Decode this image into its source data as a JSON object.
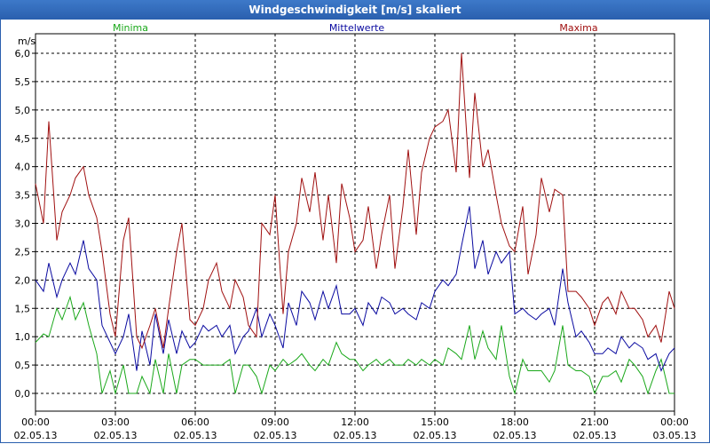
{
  "window": {
    "title": "Windgeschwindigkeit [m/s] skaliert"
  },
  "colors": {
    "minima": "#1aa81a",
    "mittel": "#0a0aa0",
    "maxima": "#a01010",
    "grid": "#000000"
  },
  "chart_data": {
    "type": "line",
    "title": "Windgeschwindigkeit [m/s] skaliert",
    "ylabel": "m/s",
    "ylim": [
      0,
      6.0
    ],
    "yticks": [
      "0,0",
      "0,5",
      "1,0",
      "1,5",
      "2,0",
      "2,5",
      "3,0",
      "3,5",
      "4,0",
      "4,5",
      "5,0",
      "5,5",
      "6,0"
    ],
    "xticks": [
      {
        "time": "00:00",
        "date": "02.05.13"
      },
      {
        "time": "03:00",
        "date": "02.05.13"
      },
      {
        "time": "06:00",
        "date": "02.05.13"
      },
      {
        "time": "09:00",
        "date": "02.05.13"
      },
      {
        "time": "12:00",
        "date": "02.05.13"
      },
      {
        "time": "15:00",
        "date": "02.05.13"
      },
      {
        "time": "18:00",
        "date": "02.05.13"
      },
      {
        "time": "21:00",
        "date": "02.05.13"
      },
      {
        "time": "00:00",
        "date": "03.05.13"
      }
    ],
    "x_hours": [
      0,
      0.3,
      0.5,
      0.8,
      1.0,
      1.3,
      1.5,
      1.8,
      2.0,
      2.3,
      2.5,
      2.8,
      3.0,
      3.3,
      3.5,
      3.8,
      4.0,
      4.3,
      4.5,
      4.8,
      5.0,
      5.3,
      5.5,
      5.8,
      6.0,
      6.3,
      6.5,
      6.8,
      7.0,
      7.3,
      7.5,
      7.8,
      8.0,
      8.3,
      8.5,
      8.8,
      9.0,
      9.3,
      9.5,
      9.8,
      10.0,
      10.3,
      10.5,
      10.8,
      11.0,
      11.3,
      11.5,
      11.8,
      12.0,
      12.3,
      12.5,
      12.8,
      13.0,
      13.3,
      13.5,
      13.8,
      14.0,
      14.3,
      14.5,
      14.8,
      15.0,
      15.3,
      15.5,
      15.8,
      16.0,
      16.3,
      16.5,
      16.8,
      17.0,
      17.3,
      17.5,
      17.8,
      18.0,
      18.3,
      18.5,
      18.8,
      19.0,
      19.3,
      19.5,
      19.8,
      20.0,
      20.3,
      20.5,
      20.8,
      21.0,
      21.3,
      21.5,
      21.8,
      22.0,
      22.3,
      22.5,
      22.8,
      23.0,
      23.3,
      23.5,
      23.8,
      24.0
    ],
    "series": [
      {
        "name": "Minima",
        "color": "#1aa81a",
        "values": [
          0.9,
          1.05,
          1.0,
          1.5,
          1.3,
          1.7,
          1.3,
          1.6,
          1.2,
          0.7,
          0.0,
          0.4,
          0.0,
          0.5,
          0.0,
          0.0,
          0.3,
          0.0,
          0.6,
          0.0,
          0.7,
          0.0,
          0.5,
          0.6,
          0.6,
          0.5,
          0.5,
          0.5,
          0.5,
          0.6,
          0.0,
          0.5,
          0.5,
          0.3,
          0.0,
          0.5,
          0.4,
          0.6,
          0.5,
          0.6,
          0.7,
          0.5,
          0.4,
          0.6,
          0.5,
          0.9,
          0.7,
          0.6,
          0.6,
          0.4,
          0.5,
          0.6,
          0.5,
          0.6,
          0.5,
          0.5,
          0.6,
          0.5,
          0.6,
          0.5,
          0.6,
          0.5,
          0.8,
          0.7,
          0.6,
          1.2,
          0.6,
          1.1,
          0.8,
          0.6,
          1.2,
          0.3,
          0.0,
          0.6,
          0.4,
          0.4,
          0.4,
          0.2,
          0.4,
          1.2,
          0.5,
          0.4,
          0.4,
          0.3,
          0.0,
          0.3,
          0.3,
          0.4,
          0.2,
          0.6,
          0.5,
          0.3,
          0.0,
          0.4,
          0.6,
          0.0,
          0.0
        ]
      },
      {
        "name": "Mittelwerte",
        "color": "#0a0aa0",
        "values": [
          2.0,
          1.8,
          2.3,
          1.7,
          2.0,
          2.3,
          2.1,
          2.7,
          2.2,
          2.0,
          1.2,
          0.9,
          0.7,
          1.0,
          1.4,
          0.4,
          1.1,
          0.5,
          1.4,
          0.7,
          1.3,
          0.7,
          1.1,
          0.8,
          0.9,
          1.2,
          1.1,
          1.2,
          1.0,
          1.2,
          0.7,
          1.0,
          1.1,
          1.5,
          1.0,
          1.4,
          1.2,
          0.8,
          1.6,
          1.2,
          1.8,
          1.6,
          1.3,
          1.8,
          1.5,
          1.9,
          1.4,
          1.4,
          1.5,
          1.2,
          1.6,
          1.4,
          1.7,
          1.6,
          1.4,
          1.5,
          1.4,
          1.3,
          1.6,
          1.5,
          1.8,
          2.0,
          1.9,
          2.1,
          2.6,
          3.3,
          2.2,
          2.7,
          2.1,
          2.5,
          2.3,
          2.5,
          1.4,
          1.5,
          1.4,
          1.3,
          1.4,
          1.5,
          1.2,
          2.2,
          1.6,
          1.0,
          1.1,
          0.9,
          0.7,
          0.7,
          0.8,
          0.7,
          1.0,
          0.8,
          0.9,
          0.8,
          0.6,
          0.7,
          0.4,
          0.7,
          0.8
        ]
      },
      {
        "name": "Maxima",
        "color": "#a01010",
        "values": [
          3.7,
          3.0,
          4.8,
          2.7,
          3.2,
          3.5,
          3.8,
          4.0,
          3.5,
          3.1,
          2.5,
          1.4,
          1.0,
          2.7,
          3.1,
          1.0,
          0.8,
          1.2,
          1.5,
          0.8,
          1.5,
          2.5,
          3.0,
          1.3,
          1.2,
          1.5,
          2.0,
          2.3,
          1.8,
          1.5,
          2.0,
          1.7,
          1.2,
          1.0,
          3.0,
          2.8,
          3.5,
          1.4,
          2.5,
          3.0,
          3.8,
          3.2,
          3.9,
          2.7,
          3.5,
          2.3,
          3.7,
          3.1,
          2.5,
          2.7,
          3.3,
          2.2,
          2.8,
          3.5,
          2.2,
          3.3,
          4.3,
          2.8,
          3.9,
          4.5,
          4.7,
          4.8,
          5.0,
          3.9,
          6.0,
          3.8,
          5.3,
          4.0,
          4.3,
          3.5,
          3.0,
          2.6,
          2.5,
          3.3,
          2.1,
          2.8,
          3.8,
          3.2,
          3.6,
          3.5,
          1.8,
          1.8,
          1.7,
          1.5,
          1.2,
          1.6,
          1.7,
          1.4,
          1.8,
          1.5,
          1.5,
          1.3,
          1.0,
          1.2,
          0.9,
          1.8,
          1.5
        ]
      }
    ],
    "grid": true,
    "legend": "top"
  }
}
